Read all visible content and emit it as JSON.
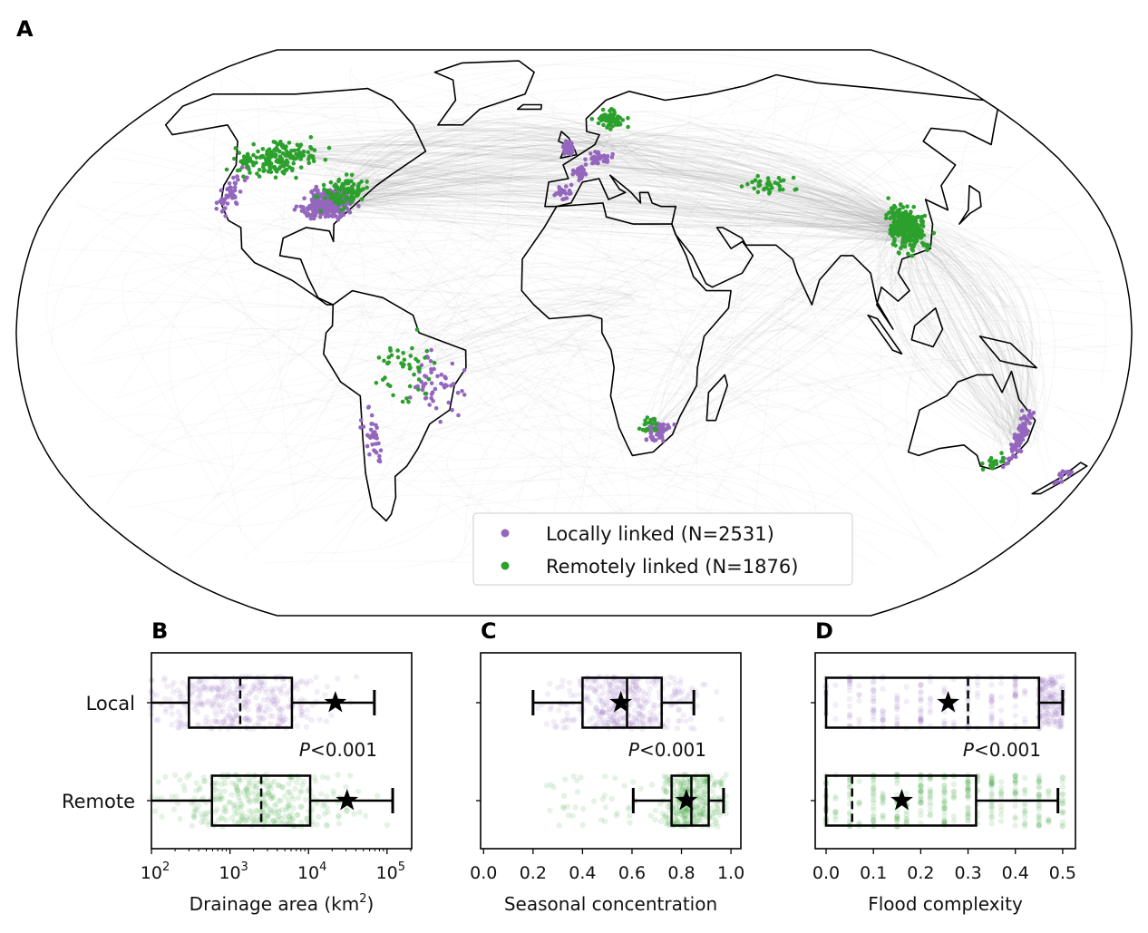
{
  "figure": {
    "panel_labels": [
      "A",
      "B",
      "C",
      "D"
    ]
  },
  "colors": {
    "local": "#9467bd",
    "remote": "#2ca02c",
    "links": "#808080",
    "coastline": "#000000"
  },
  "chart_data": [
    {
      "panel": "A",
      "type": "scatter",
      "subtype": "world-map",
      "projection": "Robinson",
      "legend": {
        "placement": "bottom-center",
        "entries": [
          {
            "label": "Locally linked (N=2531)",
            "color": "#9467bd"
          },
          {
            "label": "Remotely linked (N=1876)",
            "color": "#2ca02c"
          }
        ]
      },
      "series": [
        {
          "name": "Locally linked",
          "count": 2531,
          "color": "#9467bd"
        },
        {
          "name": "Remotely linked",
          "count": 1876,
          "color": "#2ca02c"
        }
      ],
      "background_lines": "gray link arcs connecting locations"
    },
    {
      "panel": "B",
      "type": "box",
      "xlabel": "Drainage area (km",
      "xlabel_sup": "2",
      "xlabel_end": ")",
      "xscale": "log",
      "xlim": [
        100,
        206000
      ],
      "xticks": [
        {
          "base": "10",
          "exp": "2",
          "v": 100
        },
        {
          "base": "10",
          "exp": "3",
          "v": 1000
        },
        {
          "base": "10",
          "exp": "4",
          "v": 10000
        },
        {
          "base": "10",
          "exp": "5",
          "v": 100000
        }
      ],
      "categories": [
        "Local",
        "Remote"
      ],
      "annotation": {
        "italic": "P",
        "rest": "<0.001"
      },
      "series": [
        {
          "name": "Local",
          "whislo": 100,
          "q1": 300,
          "median": 1350,
          "q3": 6150,
          "whishi": 69000,
          "mean": 22000,
          "color": "#9467bd"
        },
        {
          "name": "Remote",
          "whislo": 100,
          "q1": 590,
          "median": 2500,
          "q3": 10500,
          "whishi": 118000,
          "mean": 31000,
          "color": "#2ca02c"
        }
      ]
    },
    {
      "panel": "C",
      "type": "box",
      "xlabel": "Seasonal concentration",
      "xscale": "linear",
      "xlim": [
        -0.012,
        1.04
      ],
      "xticks": [
        {
          "label": "0.0",
          "v": 0
        },
        {
          "label": "0.2",
          "v": 0.2
        },
        {
          "label": "0.4",
          "v": 0.4
        },
        {
          "label": "0.6",
          "v": 0.6
        },
        {
          "label": "0.8",
          "v": 0.8
        },
        {
          "label": "1.0",
          "v": 1.0
        }
      ],
      "categories": [
        "Local",
        "Remote"
      ],
      "annotation": {
        "italic": "P",
        "rest": "<0.001"
      },
      "series": [
        {
          "name": "Local",
          "whislo": 0.2,
          "q1": 0.4,
          "median": 0.58,
          "q3": 0.72,
          "whishi": 0.85,
          "mean": 0.555,
          "color": "#9467bd"
        },
        {
          "name": "Remote",
          "whislo": 0.605,
          "q1": 0.76,
          "median": 0.84,
          "q3": 0.91,
          "whishi": 0.97,
          "mean": 0.82,
          "color": "#2ca02c"
        }
      ]
    },
    {
      "panel": "D",
      "type": "box",
      "xlabel": "Flood complexity",
      "xscale": "linear",
      "xlim": [
        -0.023,
        0.527
      ],
      "xticks": [
        {
          "label": "0.0",
          "v": 0
        },
        {
          "label": "0.1",
          "v": 0.1
        },
        {
          "label": "0.2",
          "v": 0.2
        },
        {
          "label": "0.3",
          "v": 0.3
        },
        {
          "label": "0.4",
          "v": 0.4
        },
        {
          "label": "0.5",
          "v": 0.5
        }
      ],
      "categories": [
        "Local",
        "Remote"
      ],
      "annotation": {
        "italic": "P",
        "rest": "<0.001"
      },
      "series": [
        {
          "name": "Local",
          "whislo": 0,
          "q1": 0,
          "median": 0.3,
          "q3": 0.45,
          "whishi": 0.5,
          "mean": 0.258,
          "color": "#9467bd"
        },
        {
          "name": "Remote",
          "whislo": 0,
          "q1": 0,
          "median": 0.055,
          "q3": 0.317,
          "whishi": 0.49,
          "mean": 0.16,
          "color": "#2ca02c"
        }
      ]
    }
  ]
}
